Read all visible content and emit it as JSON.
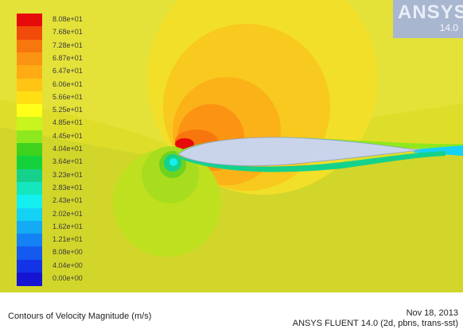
{
  "window": {
    "caption": "Contours of Velocity Magnitude (m/s)",
    "date": "Nov 18, 2013",
    "solver": "ANSYS FLUENT 14.0 (2d, pbns, trans-sst)"
  },
  "logo": {
    "name": "ANSYS",
    "version": "14.0"
  },
  "legend": {
    "levels": [
      {
        "label": "8.08e+01",
        "color": "#e60a0a"
      },
      {
        "label": "7.68e+01",
        "color": "#f24a0a"
      },
      {
        "label": "7.28e+01",
        "color": "#f7760e"
      },
      {
        "label": "6.87e+01",
        "color": "#fb9412"
      },
      {
        "label": "6.47e+01",
        "color": "#ffab14"
      },
      {
        "label": "6.06e+01",
        "color": "#ffc414"
      },
      {
        "label": "5.66e+01",
        "color": "#ffdf14"
      },
      {
        "label": "5.25e+01",
        "color": "#ffff1a"
      },
      {
        "label": "4.85e+01",
        "color": "#c8f51e"
      },
      {
        "label": "4.45e+01",
        "color": "#8ee81e"
      },
      {
        "label": "4.04e+01",
        "color": "#3ed21e"
      },
      {
        "label": "3.64e+01",
        "color": "#14d23c"
      },
      {
        "label": "3.23e+01",
        "color": "#14d28c"
      },
      {
        "label": "2.83e+01",
        "color": "#14e6c0"
      },
      {
        "label": "2.43e+01",
        "color": "#14f0f0"
      },
      {
        "label": "2.02e+01",
        "color": "#14d2f5"
      },
      {
        "label": "1.62e+01",
        "color": "#14aaf5"
      },
      {
        "label": "1.21e+01",
        "color": "#1482f5"
      },
      {
        "label": "8.08e+00",
        "color": "#145af0"
      },
      {
        "label": "4.04e+00",
        "color": "#1432e6"
      },
      {
        "label": "0.00e+00",
        "color": "#1414d2"
      }
    ]
  },
  "field_colors": {
    "freestream": "#dede2a",
    "airfoil_surface": "#c9d4ea"
  }
}
